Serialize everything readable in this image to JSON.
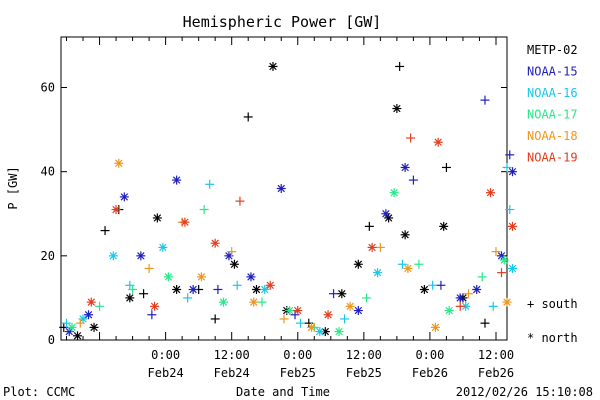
{
  "chart_data": {
    "type": "scatter",
    "title": "Hemispheric Power [GW]",
    "xlabel": "Date and Time",
    "ylabel": "P [GW]",
    "ylim": [
      0,
      72
    ],
    "xlim": [
      "2012-02-23 05:00",
      "2012-02-26 14:00"
    ],
    "grid": false,
    "legend_position": "right",
    "y_ticks": [
      0,
      20,
      40,
      60
    ],
    "x_ticks": [
      {
        "time": "2012-02-24 00:00",
        "label": "0:00",
        "date": "Feb24"
      },
      {
        "time": "2012-02-24 12:00",
        "label": "12:00",
        "date": "Feb24"
      },
      {
        "time": "2012-02-25 00:00",
        "label": "0:00",
        "date": "Feb25"
      },
      {
        "time": "2012-02-25 12:00",
        "label": "12:00",
        "date": "Feb25"
      },
      {
        "time": "2012-02-26 00:00",
        "label": "0:00",
        "date": "Feb26"
      },
      {
        "time": "2012-02-26 12:00",
        "label": "12:00",
        "date": "Feb26"
      }
    ],
    "marker_legend": {
      "south": "+ south",
      "north": "* north"
    },
    "series": [
      {
        "name": "METP-02",
        "color": "#000000",
        "points": [
          {
            "t": "2012-02-23 05:30",
            "y": 3,
            "h": "south"
          },
          {
            "t": "2012-02-23 08:00",
            "y": 1,
            "h": "north"
          },
          {
            "t": "2012-02-23 11:00",
            "y": 3,
            "h": "north"
          },
          {
            "t": "2012-02-23 13:00",
            "y": 26,
            "h": "south"
          },
          {
            "t": "2012-02-23 15:30",
            "y": 31,
            "h": "south"
          },
          {
            "t": "2012-02-23 17:30",
            "y": 10,
            "h": "north"
          },
          {
            "t": "2012-02-23 20:00",
            "y": 11,
            "h": "south"
          },
          {
            "t": "2012-02-23 22:30",
            "y": 29,
            "h": "north"
          },
          {
            "t": "2012-02-24 02:00",
            "y": 12,
            "h": "north"
          },
          {
            "t": "2012-02-24 06:00",
            "y": 12,
            "h": "south"
          },
          {
            "t": "2012-02-24 09:00",
            "y": 5,
            "h": "south"
          },
          {
            "t": "2012-02-24 12:30",
            "y": 18,
            "h": "north"
          },
          {
            "t": "2012-02-24 15:00",
            "y": 53,
            "h": "south"
          },
          {
            "t": "2012-02-24 16:30",
            "y": 12,
            "h": "north"
          },
          {
            "t": "2012-02-24 19:30",
            "y": 65,
            "h": "north"
          },
          {
            "t": "2012-02-24 22:00",
            "y": 7,
            "h": "north"
          },
          {
            "t": "2012-02-25 02:00",
            "y": 4,
            "h": "south"
          },
          {
            "t": "2012-02-25 05:00",
            "y": 2,
            "h": "north"
          },
          {
            "t": "2012-02-25 08:00",
            "y": 11,
            "h": "north"
          },
          {
            "t": "2012-02-25 11:00",
            "y": 18,
            "h": "north"
          },
          {
            "t": "2012-02-25 13:00",
            "y": 27,
            "h": "south"
          },
          {
            "t": "2012-02-25 16:30",
            "y": 29,
            "h": "north"
          },
          {
            "t": "2012-02-25 18:00",
            "y": 55,
            "h": "north"
          },
          {
            "t": "2012-02-25 18:30",
            "y": 65,
            "h": "south"
          },
          {
            "t": "2012-02-25 19:30",
            "y": 25,
            "h": "north"
          },
          {
            "t": "2012-02-25 23:00",
            "y": 12,
            "h": "north"
          },
          {
            "t": "2012-02-26 02:30",
            "y": 27,
            "h": "north"
          },
          {
            "t": "2012-02-26 03:00",
            "y": 41,
            "h": "south"
          },
          {
            "t": "2012-02-26 06:00",
            "y": 10,
            "h": "north"
          },
          {
            "t": "2012-02-26 10:00",
            "y": 4,
            "h": "south"
          }
        ]
      },
      {
        "name": "NOAA-15",
        "color": "#1f1fbf",
        "points": [
          {
            "t": "2012-02-23 06:30",
            "y": 2,
            "h": "north"
          },
          {
            "t": "2012-02-23 10:00",
            "y": 6,
            "h": "north"
          },
          {
            "t": "2012-02-23 16:30",
            "y": 34,
            "h": "north"
          },
          {
            "t": "2012-02-23 19:30",
            "y": 20,
            "h": "north"
          },
          {
            "t": "2012-02-23 21:30",
            "y": 6,
            "h": "south"
          },
          {
            "t": "2012-02-24 02:00",
            "y": 38,
            "h": "north"
          },
          {
            "t": "2012-02-24 05:00",
            "y": 12,
            "h": "north"
          },
          {
            "t": "2012-02-24 09:30",
            "y": 12,
            "h": "south"
          },
          {
            "t": "2012-02-24 11:30",
            "y": 20,
            "h": "north"
          },
          {
            "t": "2012-02-24 15:30",
            "y": 15,
            "h": "north"
          },
          {
            "t": "2012-02-24 21:00",
            "y": 36,
            "h": "north"
          },
          {
            "t": "2012-02-24 23:30",
            "y": 6,
            "h": "south"
          },
          {
            "t": "2012-02-25 06:30",
            "y": 11,
            "h": "south"
          },
          {
            "t": "2012-02-25 11:00",
            "y": 7,
            "h": "north"
          },
          {
            "t": "2012-02-25 16:00",
            "y": 30,
            "h": "north"
          },
          {
            "t": "2012-02-25 19:30",
            "y": 41,
            "h": "north"
          },
          {
            "t": "2012-02-25 21:00",
            "y": 38,
            "h": "south"
          },
          {
            "t": "2012-02-26 02:00",
            "y": 13,
            "h": "south"
          },
          {
            "t": "2012-02-26 05:30",
            "y": 10,
            "h": "north"
          },
          {
            "t": "2012-02-26 08:30",
            "y": 12,
            "h": "north"
          },
          {
            "t": "2012-02-26 10:00",
            "y": 57,
            "h": "south"
          },
          {
            "t": "2012-02-26 13:00",
            "y": 20,
            "h": "north"
          },
          {
            "t": "2012-02-26 14:30",
            "y": 44,
            "h": "south"
          },
          {
            "t": "2012-02-26 15:00",
            "y": 40,
            "h": "north"
          }
        ]
      },
      {
        "name": "NOAA-16",
        "color": "#18c8e8",
        "points": [
          {
            "t": "2012-02-23 06:00",
            "y": 4,
            "h": "south"
          },
          {
            "t": "2012-02-23 09:00",
            "y": 5,
            "h": "north"
          },
          {
            "t": "2012-02-23 14:30",
            "y": 20,
            "h": "north"
          },
          {
            "t": "2012-02-23 17:30",
            "y": 13,
            "h": "south"
          },
          {
            "t": "2012-02-23 23:30",
            "y": 22,
            "h": "north"
          },
          {
            "t": "2012-02-24 04:00",
            "y": 10,
            "h": "south"
          },
          {
            "t": "2012-02-24 08:00",
            "y": 37,
            "h": "south"
          },
          {
            "t": "2012-02-24 13:00",
            "y": 13,
            "h": "south"
          },
          {
            "t": "2012-02-24 18:00",
            "y": 12,
            "h": "north"
          },
          {
            "t": "2012-02-25 00:30",
            "y": 4,
            "h": "south"
          },
          {
            "t": "2012-02-25 04:00",
            "y": 2,
            "h": "north"
          },
          {
            "t": "2012-02-25 08:30",
            "y": 5,
            "h": "south"
          },
          {
            "t": "2012-02-25 14:30",
            "y": 16,
            "h": "north"
          },
          {
            "t": "2012-02-25 19:00",
            "y": 18,
            "h": "south"
          },
          {
            "t": "2012-02-26 00:30",
            "y": 13,
            "h": "south"
          },
          {
            "t": "2012-02-26 06:30",
            "y": 8,
            "h": "north"
          },
          {
            "t": "2012-02-26 11:30",
            "y": 8,
            "h": "south"
          },
          {
            "t": "2012-02-26 14:00",
            "y": 41,
            "h": "south"
          },
          {
            "t": "2012-02-26 14:30",
            "y": 31,
            "h": "south"
          },
          {
            "t": "2012-02-26 15:00",
            "y": 17,
            "h": "north"
          }
        ]
      },
      {
        "name": "NOAA-17",
        "color": "#28e888",
        "points": [
          {
            "t": "2012-02-23 07:00",
            "y": 3,
            "h": "north"
          },
          {
            "t": "2012-02-23 12:00",
            "y": 8,
            "h": "south"
          },
          {
            "t": "2012-02-23 18:00",
            "y": 12,
            "h": "south"
          },
          {
            "t": "2012-02-24 00:30",
            "y": 15,
            "h": "north"
          },
          {
            "t": "2012-02-24 07:00",
            "y": 31,
            "h": "south"
          },
          {
            "t": "2012-02-24 10:30",
            "y": 9,
            "h": "north"
          },
          {
            "t": "2012-02-24 17:30",
            "y": 9,
            "h": "south"
          },
          {
            "t": "2012-02-24 22:30",
            "y": 7,
            "h": "north"
          },
          {
            "t": "2012-02-25 03:00",
            "y": 3,
            "h": "south"
          },
          {
            "t": "2012-02-25 07:30",
            "y": 2,
            "h": "north"
          },
          {
            "t": "2012-02-25 12:30",
            "y": 10,
            "h": "south"
          },
          {
            "t": "2012-02-25 17:30",
            "y": 35,
            "h": "north"
          },
          {
            "t": "2012-02-25 22:00",
            "y": 18,
            "h": "south"
          },
          {
            "t": "2012-02-26 03:30",
            "y": 7,
            "h": "north"
          },
          {
            "t": "2012-02-26 09:30",
            "y": 15,
            "h": "south"
          },
          {
            "t": "2012-02-26 13:30",
            "y": 19,
            "h": "north"
          }
        ]
      },
      {
        "name": "NOAA-18",
        "color": "#f0961e",
        "points": [
          {
            "t": "2012-02-23 08:30",
            "y": 4,
            "h": "south"
          },
          {
            "t": "2012-02-23 15:30",
            "y": 42,
            "h": "north"
          },
          {
            "t": "2012-02-23 21:00",
            "y": 17,
            "h": "south"
          },
          {
            "t": "2012-02-24 03:00",
            "y": 28,
            "h": "south"
          },
          {
            "t": "2012-02-24 06:30",
            "y": 15,
            "h": "north"
          },
          {
            "t": "2012-02-24 12:00",
            "y": 21,
            "h": "south"
          },
          {
            "t": "2012-02-24 16:00",
            "y": 9,
            "h": "north"
          },
          {
            "t": "2012-02-24 21:30",
            "y": 5,
            "h": "south"
          },
          {
            "t": "2012-02-25 02:30",
            "y": 3,
            "h": "north"
          },
          {
            "t": "2012-02-25 09:30",
            "y": 8,
            "h": "north"
          },
          {
            "t": "2012-02-25 15:00",
            "y": 22,
            "h": "south"
          },
          {
            "t": "2012-02-25 20:00",
            "y": 17,
            "h": "north"
          },
          {
            "t": "2012-02-26 01:00",
            "y": 3,
            "h": "north"
          },
          {
            "t": "2012-02-26 07:00",
            "y": 11,
            "h": "south"
          },
          {
            "t": "2012-02-26 12:00",
            "y": 21,
            "h": "south"
          },
          {
            "t": "2012-02-26 14:00",
            "y": 9,
            "h": "north"
          }
        ]
      },
      {
        "name": "NOAA-19",
        "color": "#e43c1e",
        "points": [
          {
            "t": "2012-02-23 10:30",
            "y": 9,
            "h": "north"
          },
          {
            "t": "2012-02-23 15:00",
            "y": 31,
            "h": "north"
          },
          {
            "t": "2012-02-23 22:00",
            "y": 8,
            "h": "north"
          },
          {
            "t": "2012-02-24 03:30",
            "y": 28,
            "h": "north"
          },
          {
            "t": "2012-02-24 09:00",
            "y": 23,
            "h": "north"
          },
          {
            "t": "2012-02-24 13:30",
            "y": 33,
            "h": "south"
          },
          {
            "t": "2012-02-24 19:00",
            "y": 13,
            "h": "north"
          },
          {
            "t": "2012-02-25 00:00",
            "y": 7,
            "h": "north"
          },
          {
            "t": "2012-02-25 05:30",
            "y": 6,
            "h": "north"
          },
          {
            "t": "2012-02-25 13:30",
            "y": 22,
            "h": "north"
          },
          {
            "t": "2012-02-25 20:30",
            "y": 48,
            "h": "south"
          },
          {
            "t": "2012-02-26 01:30",
            "y": 47,
            "h": "north"
          },
          {
            "t": "2012-02-26 05:30",
            "y": 8,
            "h": "south"
          },
          {
            "t": "2012-02-26 11:00",
            "y": 35,
            "h": "north"
          },
          {
            "t": "2012-02-26 13:00",
            "y": 16,
            "h": "south"
          },
          {
            "t": "2012-02-26 15:00",
            "y": 27,
            "h": "north"
          }
        ]
      }
    ]
  },
  "footer": {
    "plot_credit": "Plot: CCMC",
    "timestamp": "2012/02/26 15:10:08"
  }
}
